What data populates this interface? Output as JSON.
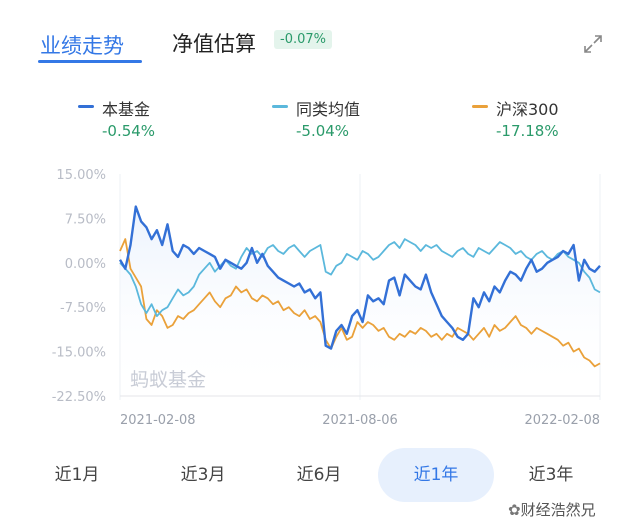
{
  "header": {
    "tab_performance": "业绩走势",
    "tab_estimate": "净值估算",
    "estimate_badge": "-0.07%",
    "expand_icon": "expand-icon"
  },
  "legend": [
    {
      "name": "本基金",
      "value": "-0.54%",
      "color": "#3370d6"
    },
    {
      "name": "同类均值",
      "value": "-5.04%",
      "color": "#5bb8dc"
    },
    {
      "name": "沪深300",
      "value": "-17.18%",
      "color": "#eaa13a"
    }
  ],
  "watermark": "蚂蚁基金",
  "corner_watermark": "财经浩然兄",
  "periods": [
    {
      "label": "近1月",
      "active": false
    },
    {
      "label": "近3月",
      "active": false
    },
    {
      "label": "近6月",
      "active": false
    },
    {
      "label": "近1年",
      "active": true
    },
    {
      "label": "近3年",
      "active": false
    }
  ],
  "chart_data": {
    "type": "line",
    "x_tick_labels": [
      "2021-02-08",
      "2021-08-06",
      "2022-02-08"
    ],
    "y_tick_labels": [
      "15.00%",
      "7.50%",
      "0.00%",
      "-7.50%",
      "-15.00%",
      "-22.50%"
    ],
    "ylim": [
      -22.5,
      15
    ],
    "x": [
      0,
      4,
      8,
      12,
      16,
      20,
      24,
      28,
      32,
      36,
      40,
      44,
      48,
      52,
      56,
      60,
      64,
      68,
      72,
      76,
      80,
      84,
      88,
      92,
      96,
      100,
      104,
      108,
      112,
      116,
      120,
      124,
      128,
      132,
      136,
      140,
      144,
      148,
      152,
      156,
      160,
      164,
      168,
      172,
      176,
      180,
      184,
      188,
      192,
      196,
      200,
      204,
      208,
      212,
      216,
      220,
      224,
      228,
      232,
      236,
      240,
      244,
      248,
      252,
      256,
      260,
      264,
      268,
      272,
      276,
      280,
      284,
      288,
      292,
      296,
      300,
      304,
      308,
      312,
      316,
      320,
      324,
      328,
      332,
      336,
      340,
      344,
      348,
      352,
      356,
      360,
      364
    ],
    "series": [
      {
        "name": "本基金",
        "color": "#3370d6",
        "values": [
          0.5,
          -1.0,
          3.0,
          9.5,
          7.0,
          6.0,
          4.0,
          5.5,
          3.0,
          6.5,
          2.0,
          1.0,
          3.0,
          2.5,
          1.5,
          2.5,
          2.0,
          1.5,
          1.0,
          -1.0,
          0.5,
          0.0,
          -0.5,
          -1.0,
          0.0,
          2.5,
          0.0,
          1.5,
          -0.5,
          -1.5,
          -2.5,
          -3.0,
          -3.5,
          -4.0,
          -3.5,
          -5.0,
          -4.5,
          -6.0,
          -5.0,
          -14.0,
          -14.5,
          -11.5,
          -10.5,
          -12.0,
          -9.0,
          -8.0,
          -10.0,
          -5.5,
          -6.5,
          -6.0,
          -7.0,
          -3.0,
          -2.5,
          -5.5,
          -2.0,
          -3.0,
          -4.0,
          -4.5,
          -2.0,
          -5.0,
          -7.0,
          -9.0,
          -10.0,
          -11.0,
          -12.5,
          -13.0,
          -12.0,
          -6.0,
          -7.5,
          -5.0,
          -6.5,
          -4.0,
          -5.0,
          -3.0,
          -1.5,
          -2.0,
          -3.0,
          -1.0,
          0.5,
          -1.5,
          -1.0,
          0.0,
          0.5,
          1.0,
          2.0,
          1.5,
          3.0,
          -3.0,
          0.5,
          -1.0,
          -1.5,
          -0.5
        ]
      },
      {
        "name": "同类均值",
        "color": "#5bb8dc",
        "values": [
          0.0,
          -1.0,
          -2.0,
          -4.0,
          -7.0,
          -8.5,
          -7.0,
          -9.0,
          -8.0,
          -7.5,
          -6.0,
          -4.5,
          -5.5,
          -5.0,
          -4.0,
          -2.0,
          -1.0,
          0.0,
          -1.5,
          -0.5,
          0.5,
          -0.5,
          -1.0,
          1.0,
          2.5,
          1.5,
          2.0,
          1.0,
          2.5,
          3.0,
          2.0,
          1.5,
          2.5,
          3.0,
          2.0,
          1.0,
          2.0,
          2.5,
          3.0,
          -1.5,
          -2.0,
          -0.5,
          0.0,
          1.5,
          1.0,
          0.5,
          2.0,
          1.5,
          0.5,
          1.0,
          2.0,
          3.0,
          3.5,
          2.5,
          4.0,
          3.5,
          3.0,
          2.0,
          3.0,
          2.5,
          3.0,
          2.0,
          1.5,
          1.0,
          2.0,
          2.5,
          1.5,
          1.0,
          2.5,
          2.0,
          1.5,
          2.5,
          3.5,
          3.0,
          2.5,
          1.5,
          2.0,
          1.0,
          0.5,
          1.5,
          2.0,
          1.0,
          0.5,
          1.5,
          2.0,
          1.0,
          0.5,
          0.0,
          -1.5,
          -2.5,
          -4.5,
          -5.0
        ]
      },
      {
        "name": "沪深300",
        "color": "#eaa13a",
        "values": [
          2.0,
          4.0,
          -1.0,
          -2.5,
          -4.0,
          -9.5,
          -10.5,
          -8.0,
          -9.0,
          -11.0,
          -10.5,
          -9.0,
          -9.5,
          -8.5,
          -8.0,
          -7.0,
          -6.0,
          -5.0,
          -6.5,
          -7.5,
          -6.0,
          -5.5,
          -4.0,
          -5.0,
          -4.5,
          -6.0,
          -6.5,
          -5.5,
          -6.0,
          -7.0,
          -6.5,
          -8.0,
          -7.5,
          -8.5,
          -9.0,
          -8.0,
          -9.5,
          -9.0,
          -10.0,
          -13.0,
          -14.5,
          -12.5,
          -11.0,
          -13.0,
          -12.5,
          -10.0,
          -11.0,
          -10.0,
          -10.5,
          -11.5,
          -11.0,
          -12.5,
          -13.0,
          -12.0,
          -12.5,
          -11.5,
          -12.0,
          -11.0,
          -11.5,
          -12.5,
          -12.0,
          -13.0,
          -12.0,
          -12.5,
          -11.0,
          -11.5,
          -12.0,
          -13.0,
          -12.0,
          -11.0,
          -12.5,
          -10.5,
          -11.5,
          -11.0,
          -10.0,
          -9.0,
          -10.5,
          -11.0,
          -12.0,
          -11.0,
          -11.5,
          -12.0,
          -12.5,
          -13.0,
          -14.0,
          -13.5,
          -15.0,
          -14.5,
          -16.0,
          -16.5,
          -17.5,
          -17.0
        ]
      }
    ]
  }
}
